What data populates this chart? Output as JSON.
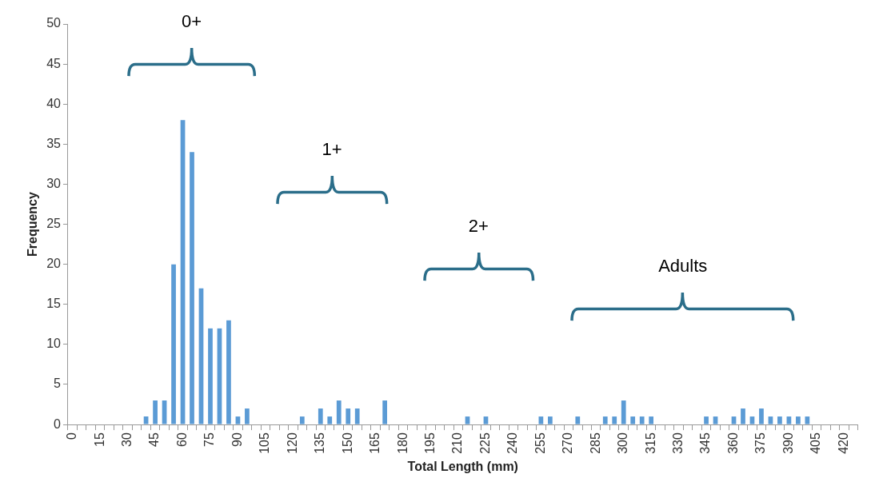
{
  "chart_data": {
    "type": "bar",
    "xlabel": "Total Length (mm)",
    "ylabel": "Frequency",
    "categories": [
      "0",
      null,
      null,
      "15",
      null,
      null,
      "30",
      null,
      null,
      "45",
      null,
      null,
      "60",
      null,
      null,
      "75",
      null,
      null,
      "90",
      null,
      null,
      "105",
      null,
      null,
      "120",
      null,
      null,
      "135",
      null,
      null,
      "150",
      null,
      null,
      "165",
      null,
      null,
      "180",
      null,
      null,
      "195",
      null,
      null,
      "210",
      null,
      null,
      "225",
      null,
      null,
      "240",
      null,
      null,
      "255",
      null,
      null,
      "270",
      null,
      null,
      "285",
      null,
      null,
      "300",
      null,
      null,
      "315",
      null,
      null,
      "330",
      null,
      null,
      "345",
      null,
      null,
      "360",
      null,
      null,
      "375",
      null,
      null,
      "390",
      null,
      null,
      "405",
      null,
      null,
      "420",
      null
    ],
    "values": [
      0,
      0,
      0,
      0,
      0,
      0,
      0,
      0,
      1,
      3,
      3,
      20,
      38,
      34,
      17,
      12,
      12,
      13,
      1,
      2,
      0,
      0,
      0,
      0,
      0,
      1,
      0,
      2,
      1,
      3,
      2,
      2,
      0,
      0,
      3,
      0,
      0,
      0,
      0,
      0,
      0,
      0,
      0,
      1,
      0,
      1,
      0,
      0,
      0,
      0,
      0,
      1,
      1,
      0,
      0,
      1,
      0,
      0,
      1,
      1,
      3,
      1,
      1,
      1,
      0,
      0,
      0,
      0,
      0,
      1,
      1,
      0,
      1,
      2,
      1,
      2,
      1,
      1,
      1,
      1,
      1,
      0,
      0,
      0,
      0,
      0
    ],
    "color": "#5b9bd5",
    "ylim": [
      0,
      50
    ],
    "yticks": [
      0,
      5,
      10,
      15,
      20,
      25,
      30,
      35,
      40,
      45,
      50
    ],
    "grid": false,
    "legend": false,
    "annotations": [
      "0+",
      "1+",
      "2+",
      "Adults"
    ]
  }
}
